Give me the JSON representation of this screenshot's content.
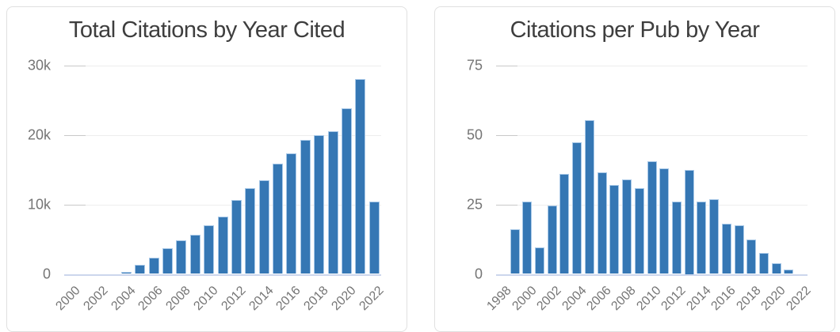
{
  "page": {
    "background": "#ffffff"
  },
  "colors": {
    "bar_fill": "#3577b4",
    "bar_edge": "#a9c9e8",
    "gridline": "#ededed",
    "tick_segment": "#c9c9c9",
    "baseline": "#ccd6ec",
    "title_text": "#3e3e3e",
    "axis_label_text": "#757575",
    "card_border": "#e0e0e0"
  },
  "chart_data": [
    {
      "type": "bar",
      "title": "Total Citations by Year Cited",
      "xlabel": "",
      "ylabel": "",
      "grid": true,
      "legend": false,
      "ylim": [
        0,
        30000
      ],
      "yticks": [
        {
          "value": 0,
          "label": "0"
        },
        {
          "value": 10000,
          "label": "10k"
        },
        {
          "value": 20000,
          "label": "20k"
        },
        {
          "value": 30000,
          "label": "30k"
        }
      ],
      "xtick_labels": [
        "2000",
        "2002",
        "2004",
        "2006",
        "2008",
        "2010",
        "2012",
        "2014",
        "2016",
        "2018",
        "2020",
        "2022"
      ],
      "categories": [
        "2000",
        "2001",
        "2002",
        "2003",
        "2004",
        "2005",
        "2006",
        "2007",
        "2008",
        "2009",
        "2010",
        "2011",
        "2012",
        "2013",
        "2014",
        "2015",
        "2016",
        "2017",
        "2018",
        "2019",
        "2020",
        "2021",
        "2022"
      ],
      "values": [
        0,
        0,
        0,
        0,
        300,
        1300,
        2300,
        3700,
        4800,
        5600,
        7000,
        8300,
        10600,
        12300,
        13500,
        15900,
        17400,
        19300,
        20000,
        20600,
        23800,
        28100,
        10400
      ]
    },
    {
      "type": "bar",
      "title": "Citations per Pub by Year",
      "xlabel": "",
      "ylabel": "",
      "grid": true,
      "legend": false,
      "ylim": [
        0,
        75
      ],
      "yticks": [
        {
          "value": 0,
          "label": "0"
        },
        {
          "value": 25,
          "label": "25"
        },
        {
          "value": 50,
          "label": "50"
        },
        {
          "value": 75,
          "label": "75"
        }
      ],
      "xtick_labels": [
        "1998",
        "2000",
        "2002",
        "2004",
        "2006",
        "2008",
        "2010",
        "2012",
        "2014",
        "2016",
        "2018",
        "2020",
        "2022"
      ],
      "categories": [
        "1998",
        "1999",
        "2000",
        "2001",
        "2002",
        "2003",
        "2004",
        "2005",
        "2006",
        "2007",
        "2008",
        "2009",
        "2010",
        "2011",
        "2012",
        "2013",
        "2014",
        "2015",
        "2016",
        "2017",
        "2018",
        "2019",
        "2020",
        "2021",
        "2022"
      ],
      "values": [
        0,
        16,
        26,
        9.5,
        24.5,
        36,
        47.5,
        55.5,
        36.5,
        32,
        34,
        31,
        40.5,
        38,
        26,
        37.5,
        26,
        27,
        18,
        17.5,
        12.5,
        7.6,
        3.9,
        1.5,
        0
      ]
    }
  ]
}
